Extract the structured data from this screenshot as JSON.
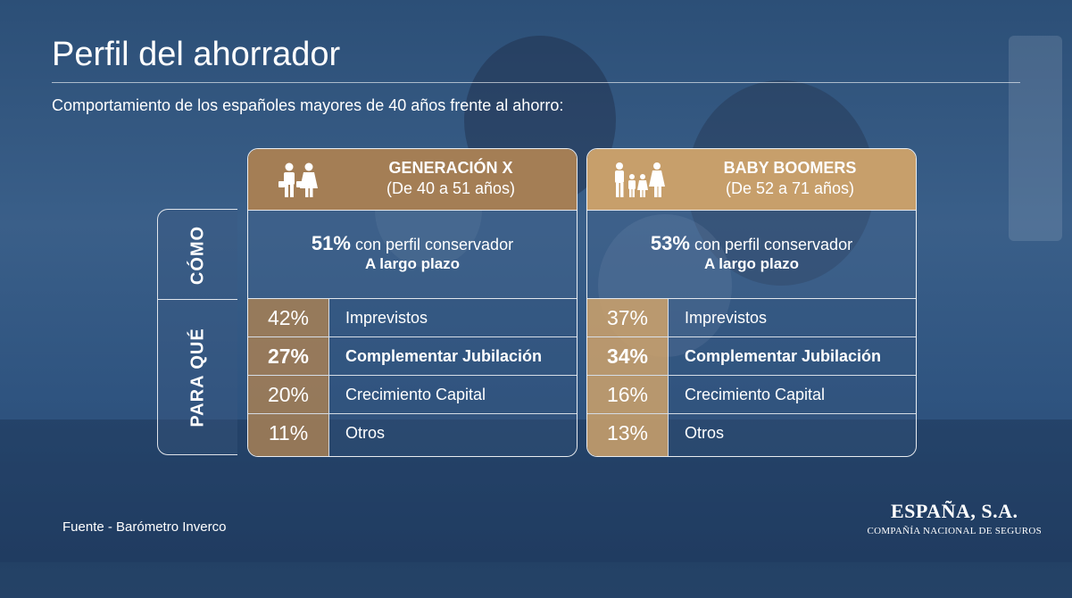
{
  "title": "Perfil del ahorrador",
  "subtitle": "Comportamiento de los españoles mayores de 40 años frente al ahorro:",
  "side_labels": {
    "como": "CÓMO",
    "para_que": "PARA QUÉ"
  },
  "groups": [
    {
      "name": "GENERACIÓN X",
      "range": "(De 40 a 51 años)",
      "icon": "couple-icon",
      "como_pct": "51%",
      "como_text": "con perfil conservador",
      "como_term": "A largo plazo",
      "rows": [
        {
          "pct": "42%",
          "label": "Imprevistos"
        },
        {
          "pct": "27%",
          "label": "Complementar Jubilación"
        },
        {
          "pct": "20%",
          "label": "Crecimiento Capital"
        },
        {
          "pct": "11%",
          "label": "Otros"
        }
      ]
    },
    {
      "name": "BABY BOOMERS",
      "range": "(De 52 a 71 años)",
      "icon": "family-icon",
      "como_pct": "53%",
      "como_text": "con perfil conservador",
      "como_term": "A largo plazo",
      "rows": [
        {
          "pct": "37%",
          "label": "Imprevistos"
        },
        {
          "pct": "34%",
          "label": "Complementar Jubilación"
        },
        {
          "pct": "16%",
          "label": "Crecimiento Capital"
        },
        {
          "pct": "13%",
          "label": "Otros"
        }
      ]
    }
  ],
  "source": "Fuente - Barómetro Inverco",
  "brand": {
    "name": "ESPAÑA, S.A.",
    "subtitle": "COMPAÑÍA NACIONAL DE SEGUROS"
  },
  "colors": {
    "gen_x_header": "#a47e55",
    "boomers_header": "#c79f6b",
    "background": "#2f5480"
  }
}
